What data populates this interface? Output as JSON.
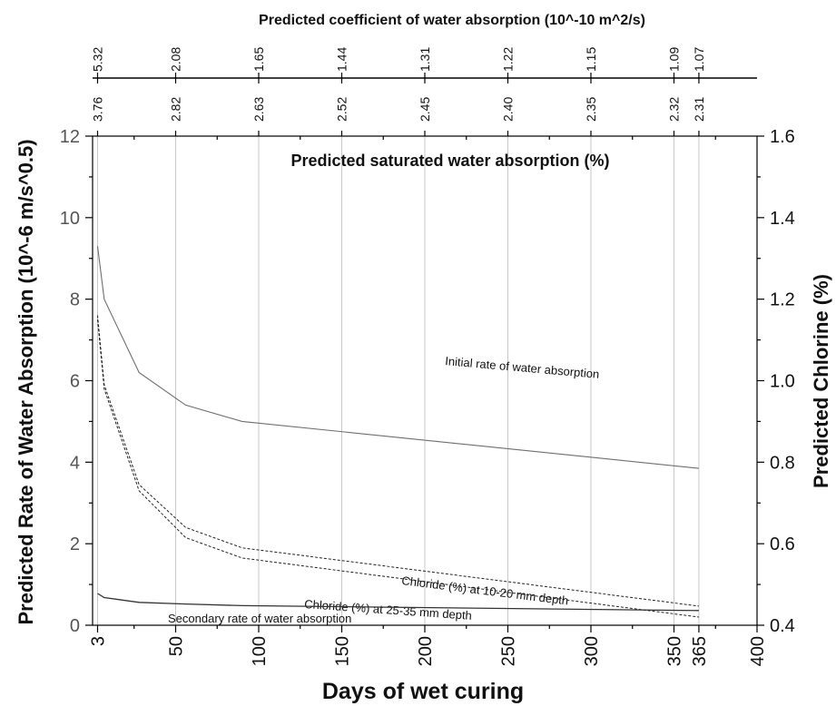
{
  "chart_data": {
    "type": "line",
    "xlabel": "Days of wet curing",
    "ylabel_left": "Predicted Rate of Water Absorption (10^-6 m/s^0.5)",
    "ylabel_right": "Predicted Chlorine (%)",
    "top_axis_title": "Predicted coefficient of water absorption (10^-10 m^2/s)",
    "inner_axis_title": "Predicted saturated water absorption (%)",
    "xlim": [
      0,
      400
    ],
    "ylim_left": [
      0,
      12
    ],
    "ylim_right": [
      0.4,
      1.6
    ],
    "x_ticks": [
      3,
      50,
      100,
      150,
      200,
      250,
      300,
      350,
      365,
      400
    ],
    "y_left_ticks": [
      0,
      2,
      4,
      6,
      8,
      10,
      12
    ],
    "y_right_ticks": [
      "0.4",
      "0.6",
      "0.8",
      "1.0",
      "1.2",
      "1.4",
      "1.6"
    ],
    "top_ticks": [
      {
        "x": 3,
        "coef": "5.32",
        "sat": "3.76"
      },
      {
        "x": 50,
        "coef": "2.08",
        "sat": "2.82"
      },
      {
        "x": 100,
        "coef": "1.65",
        "sat": "2.63"
      },
      {
        "x": 150,
        "coef": "1.44",
        "sat": "2.52"
      },
      {
        "x": 200,
        "coef": "1.31",
        "sat": "2.45"
      },
      {
        "x": 250,
        "coef": "1.22",
        "sat": "2.40"
      },
      {
        "x": 300,
        "coef": "1.15",
        "sat": "2.35"
      },
      {
        "x": 350,
        "coef": "1.09",
        "sat": "2.32"
      },
      {
        "x": 365,
        "coef": "1.07",
        "sat": "2.31"
      }
    ],
    "series": [
      {
        "name": "Initial rate of water absorption",
        "axis": "left",
        "style": "solid-grey",
        "points": [
          [
            3,
            9.3
          ],
          [
            7,
            8.0
          ],
          [
            28,
            6.2
          ],
          [
            56,
            5.4
          ],
          [
            90,
            5.0
          ],
          [
            365,
            3.85
          ]
        ]
      },
      {
        "name": "Secondary rate of water absorption",
        "axis": "left",
        "style": "solid-dark",
        "points": [
          [
            3,
            0.78
          ],
          [
            7,
            0.68
          ],
          [
            28,
            0.56
          ],
          [
            56,
            0.52
          ],
          [
            90,
            0.48
          ],
          [
            365,
            0.36
          ]
        ]
      },
      {
        "name": "Chloride (%) at 10-20 mm depth",
        "axis": "right",
        "style": "dashed",
        "points": [
          [
            3,
            1.16
          ],
          [
            7,
            0.99
          ],
          [
            28,
            0.745
          ],
          [
            56,
            0.64
          ],
          [
            90,
            0.59
          ],
          [
            365,
            0.447
          ]
        ]
      },
      {
        "name": "Chloride (%) at 25-35 mm depth",
        "axis": "right",
        "style": "dashed",
        "points": [
          [
            3,
            1.15
          ],
          [
            7,
            0.98
          ],
          [
            28,
            0.73
          ],
          [
            56,
            0.615
          ],
          [
            90,
            0.565
          ],
          [
            365,
            0.42
          ]
        ]
      }
    ]
  }
}
